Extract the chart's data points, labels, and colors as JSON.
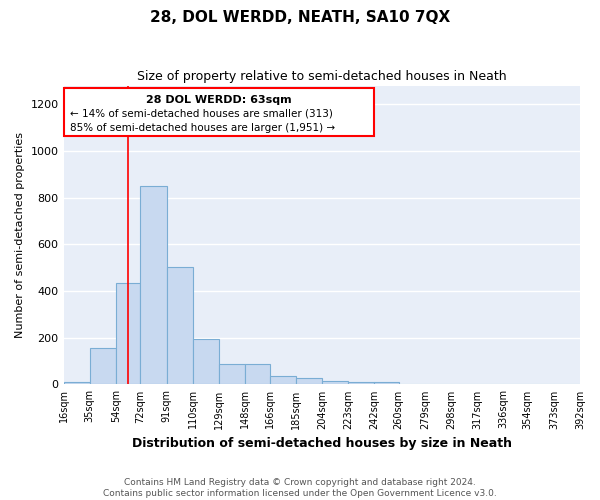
{
  "title1": "28, DOL WERDD, NEATH, SA10 7QX",
  "title2": "Size of property relative to semi-detached houses in Neath",
  "xlabel": "Distribution of semi-detached houses by size in Neath",
  "ylabel": "Number of semi-detached properties",
  "bar_color": "#c8d9f0",
  "bar_edge_color": "#7aadd4",
  "bg_color": "#e8eef8",
  "grid_color": "#ffffff",
  "annotation_title": "28 DOL WERDD: 63sqm",
  "annotation_line1": "← 14% of semi-detached houses are smaller (313)",
  "annotation_line2": "85% of semi-detached houses are larger (1,951) →",
  "redline_x": 63,
  "footer": "Contains HM Land Registry data © Crown copyright and database right 2024.\nContains public sector information licensed under the Open Government Licence v3.0.",
  "bin_edges": [
    16,
    35,
    54,
    72,
    91,
    110,
    129,
    148,
    166,
    185,
    204,
    223,
    242,
    260,
    279,
    298,
    317,
    336,
    354,
    373,
    392
  ],
  "bar_heights": [
    12,
    158,
    435,
    848,
    505,
    193,
    87,
    87,
    38,
    27,
    15,
    12,
    10,
    0,
    0,
    0,
    0,
    0,
    0,
    0
  ],
  "ylim": [
    0,
    1280
  ],
  "yticks": [
    0,
    200,
    400,
    600,
    800,
    1000,
    1200
  ]
}
